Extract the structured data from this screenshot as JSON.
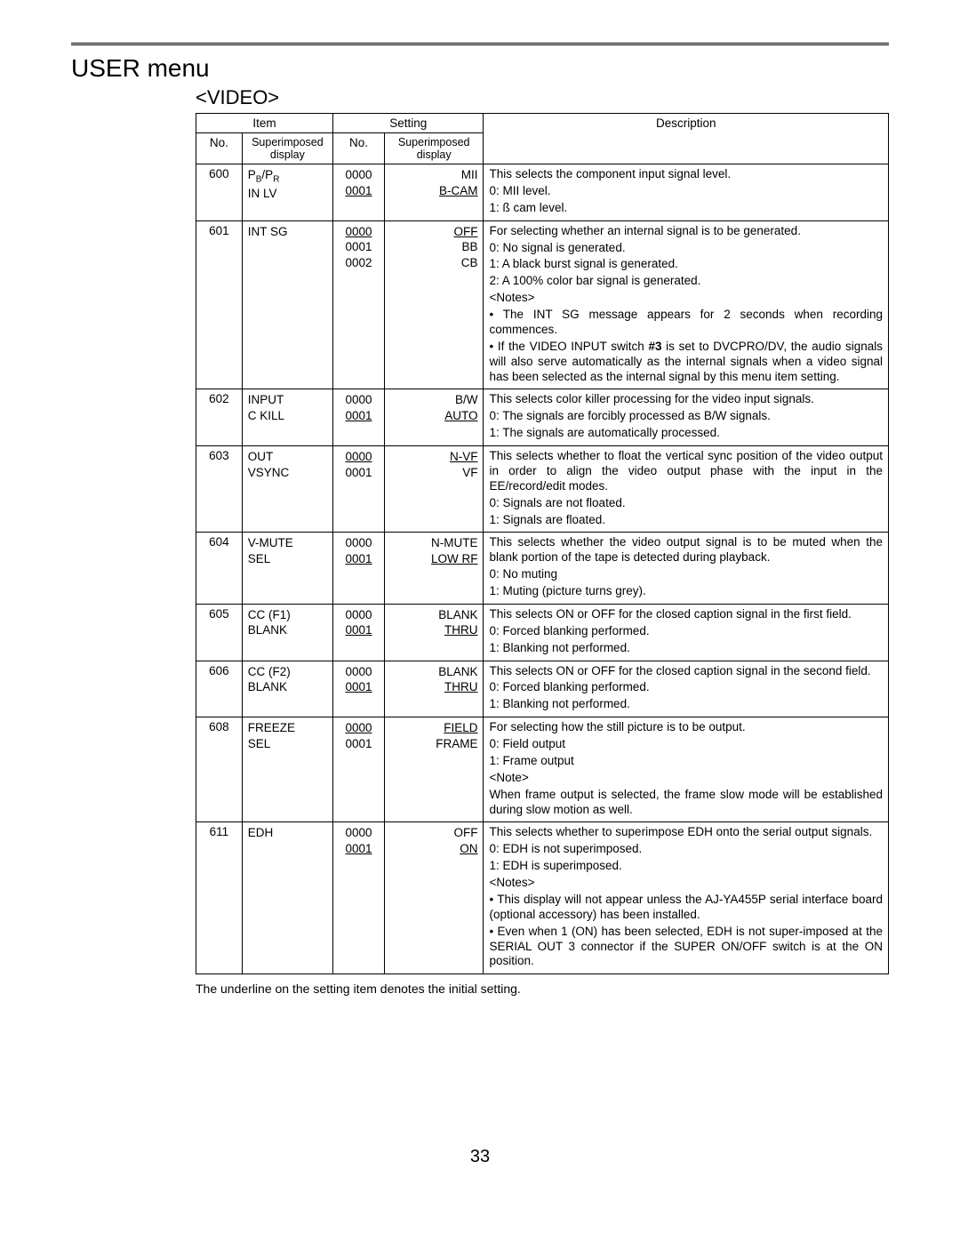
{
  "page_number": "33",
  "menu_title": "USER menu",
  "section_title": "<VIDEO>",
  "footnote": "The underline on the setting item denotes the initial setting.",
  "headers": {
    "item": "Item",
    "setting": "Setting",
    "no": "No.",
    "superimposed": "Superimposed display",
    "description": "Description"
  },
  "rows": [
    {
      "no": "600",
      "disp_html": "P<span class=\"sub\">B</span>/P<span class=\"sub\">R</span><br>IN LV",
      "settings": [
        {
          "no": "0000",
          "disp": "MII",
          "u_no": false,
          "u_disp": false
        },
        {
          "no": "0001",
          "disp": "B-CAM",
          "u_no": true,
          "u_disp": true
        }
      ],
      "desc": [
        "This selects the component input signal level.",
        "0: MII level.",
        "1: ß cam level."
      ]
    },
    {
      "no": "601",
      "disp_html": "INT SG",
      "settings": [
        {
          "no": "0000",
          "disp": "OFF",
          "u_no": true,
          "u_disp": true
        },
        {
          "no": "0001",
          "disp": "BB",
          "u_no": false,
          "u_disp": false
        },
        {
          "no": "0002",
          "disp": "CB",
          "u_no": false,
          "u_disp": false
        }
      ],
      "desc": [
        "For selecting whether an internal signal is to be generated.",
        "0: No signal is generated.",
        "1: A black burst signal is generated.",
        "2: A 100% color bar signal is generated.",
        "&lt;Notes&gt;",
        "• The INT SG message appears for 2 seconds when recording commences.",
        "• If the VIDEO INPUT switch <b>#3</b> is set to DVCPRO/DV, the audio signals will also serve automatically as the internal signals when a video signal has been selected as the internal signal by this menu item setting."
      ]
    },
    {
      "no": "602",
      "disp_html": "INPUT<br>C KILL",
      "settings": [
        {
          "no": "0000",
          "disp": "B/W",
          "u_no": false,
          "u_disp": false
        },
        {
          "no": "0001",
          "disp": "AUTO",
          "u_no": true,
          "u_disp": true
        }
      ],
      "desc": [
        "This selects color killer processing for the video input signals.",
        "0: The signals are forcibly processed as B/W signals.",
        "1: The signals are automatically processed."
      ]
    },
    {
      "no": "603",
      "disp_html": "OUT<br>VSYNC",
      "settings": [
        {
          "no": "0000",
          "disp": "N-VF",
          "u_no": true,
          "u_disp": true
        },
        {
          "no": "0001",
          "disp": "VF",
          "u_no": false,
          "u_disp": false
        }
      ],
      "desc": [
        "This selects whether to float the vertical sync position of the video output in order to align the video output phase with the input in the EE/record/edit modes.",
        "0: Signals are not floated.",
        "1: Signals are floated."
      ]
    },
    {
      "no": "604",
      "disp_html": "V-MUTE<br>SEL",
      "settings": [
        {
          "no": "0000",
          "disp": "N-MUTE",
          "u_no": false,
          "u_disp": false
        },
        {
          "no": "0001",
          "disp": "LOW  RF",
          "u_no": true,
          "u_disp": true
        }
      ],
      "desc": [
        "This selects whether the video output signal is to be muted when the blank portion of the tape is detected during playback.",
        "0: No muting",
        "1: Muting (picture turns grey)."
      ]
    },
    {
      "no": "605",
      "disp_html": "CC (F1)<br>BLANK",
      "settings": [
        {
          "no": "0000",
          "disp": "BLANK",
          "u_no": false,
          "u_disp": false
        },
        {
          "no": "0001",
          "disp": "THRU",
          "u_no": true,
          "u_disp": true
        }
      ],
      "desc": [
        "This selects ON or OFF for the closed caption signal in the first field.",
        "0: Forced blanking performed.",
        "1: Blanking not performed."
      ]
    },
    {
      "no": "606",
      "disp_html": "CC (F2)<br>BLANK",
      "settings": [
        {
          "no": "0000",
          "disp": "BLANK",
          "u_no": false,
          "u_disp": false
        },
        {
          "no": "0001",
          "disp": "THRU",
          "u_no": true,
          "u_disp": true
        }
      ],
      "desc": [
        "This selects ON or OFF for the closed caption signal in the second field.",
        "0: Forced blanking performed.",
        "1: Blanking not performed."
      ]
    },
    {
      "no": "608",
      "disp_html": "FREEZE<br>SEL",
      "settings": [
        {
          "no": "0000",
          "disp": "FIELD",
          "u_no": true,
          "u_disp": true
        },
        {
          "no": "0001",
          "disp": "FRAME",
          "u_no": false,
          "u_disp": false
        }
      ],
      "desc": [
        "For selecting how the still picture is to be output.",
        "0: Field output",
        "1: Frame output",
        "&lt;Note&gt;",
        "When frame output is selected, the frame slow mode will be established during slow motion as well."
      ]
    },
    {
      "no": "611",
      "disp_html": "EDH",
      "settings": [
        {
          "no": "0000",
          "disp": "OFF",
          "u_no": false,
          "u_disp": false
        },
        {
          "no": "0001",
          "disp": "ON",
          "u_no": true,
          "u_disp": true
        }
      ],
      "desc": [
        "This selects whether to superimpose EDH onto the serial output signals.",
        "0: EDH is not superimposed.",
        "1: EDH is superimposed.",
        "&lt;Notes&gt;",
        "• This display will not appear unless the AJ-YA455P serial interface board (optional accessory) has been installed.",
        "• Even when 1 (ON) has been selected, EDH is not super-imposed at the SERIAL OUT 3 connector if the SUPER ON/OFF switch is at the ON position."
      ]
    }
  ]
}
